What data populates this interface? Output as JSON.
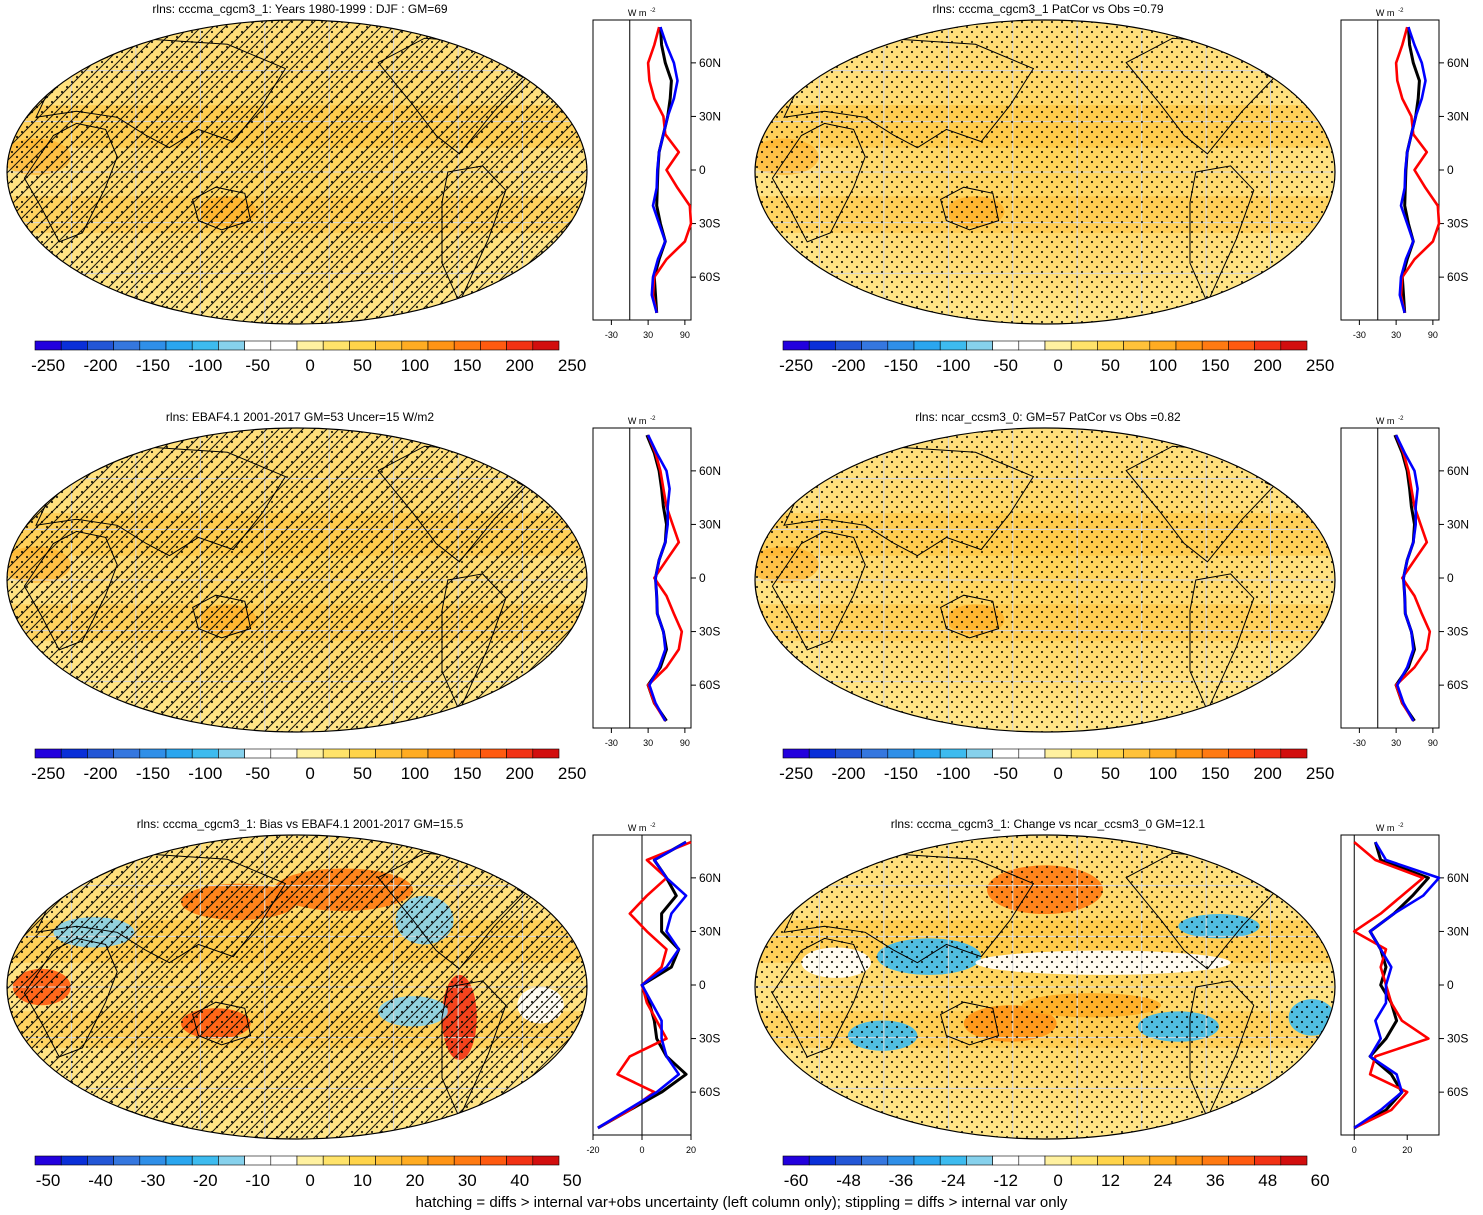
{
  "caption": "hatching = diffs > internal var+obs uncertainty (left column only); stippling = diffs > internal var only",
  "colors": {
    "palette": [
      "#2200dd",
      "#0a2fd8",
      "#2356d6",
      "#3577df",
      "#2f8fe8",
      "#2aa6ef",
      "#3dbbef",
      "#86d1ec",
      "#ffffff",
      "#ffffff",
      "#fff1a0",
      "#ffe36a",
      "#ffd44a",
      "#ffc23a",
      "#ffac22",
      "#ff9415",
      "#ff7a12",
      "#ff5a10",
      "#f23214",
      "#d20e0e"
    ],
    "map_base": "#ffd86a",
    "land_line": "#000000",
    "profile_model": "#000000",
    "profile_obs": "#ff0000",
    "profile_other": "#0000ff"
  },
  "chart_data": [
    {
      "type": "heatmap",
      "title": "rlns: cccma_cgcm3_1: Years 1980-1999 : DJF : GM=69",
      "colorbar_labels": [
        "-250",
        "-200",
        "-150",
        "-100",
        "-50",
        "0",
        "50",
        "100",
        "150",
        "200",
        "250"
      ],
      "value_range": [
        -275,
        275
      ],
      "hatched": true,
      "stippled": true,
      "profile": {
        "unit_label": "W m",
        "unit_exponent": "-2",
        "x_ticks": [
          "-30",
          "30",
          "90"
        ],
        "x_range": [
          -60,
          100
        ],
        "y_labels": [
          "60N",
          "30N",
          "0",
          "30S",
          "60S"
        ],
        "y_values": [
          60,
          30,
          0,
          -30,
          -60
        ],
        "series": [
          {
            "name": "model",
            "color": "#000000",
            "lat": [
              80,
              70,
              60,
              50,
              40,
              30,
              20,
              10,
              0,
              -10,
              -20,
              -30,
              -40,
              -50,
              -60,
              -70,
              -80
            ],
            "values": [
              50,
              52,
              58,
              68,
              66,
              62,
              55,
              48,
              46,
              45,
              44,
              50,
              58,
              48,
              40,
              42,
              44
            ]
          },
          {
            "name": "obs",
            "color": "#ff0000",
            "lat": [
              80,
              70,
              60,
              50,
              40,
              30,
              20,
              10,
              0,
              -10,
              -20,
              -30,
              -40,
              -50,
              -60,
              -70,
              -80
            ],
            "values": [
              48,
              40,
              30,
              32,
              40,
              55,
              58,
              80,
              60,
              78,
              98,
              100,
              90,
              60,
              40,
              38,
              44
            ]
          },
          {
            "name": "other",
            "color": "#0000ff",
            "lat": [
              80,
              70,
              60,
              50,
              40,
              30,
              20,
              10,
              0,
              -10,
              -20,
              -30,
              -40,
              -50,
              -60,
              -70,
              -80
            ],
            "values": [
              50,
              60,
              72,
              78,
              72,
              62,
              55,
              48,
              45,
              44,
              38,
              48,
              58,
              46,
              38,
              36,
              44
            ]
          }
        ]
      }
    },
    {
      "type": "heatmap",
      "title": "rlns: cccma_cgcm3_1 PatCor vs Obs =0.79",
      "colorbar_labels": [
        "-250",
        "-200",
        "-150",
        "-100",
        "-50",
        "0",
        "50",
        "100",
        "150",
        "200",
        "250"
      ],
      "value_range": [
        -275,
        275
      ],
      "hatched": false,
      "stippled": true,
      "profile": {
        "unit_label": "W m",
        "unit_exponent": "-2",
        "x_ticks": [
          "-30",
          "30",
          "90"
        ],
        "x_range": [
          -60,
          100
        ],
        "y_labels": [
          "60N",
          "30N",
          "0",
          "30S",
          "60S"
        ],
        "y_values": [
          60,
          30,
          0,
          -30,
          -60
        ],
        "series": [
          {
            "name": "model",
            "color": "#000000",
            "lat": [
              80,
              70,
              60,
              50,
              40,
              30,
              20,
              10,
              0,
              -10,
              -20,
              -30,
              -40,
              -50,
              -60,
              -70,
              -80
            ],
            "values": [
              50,
              52,
              58,
              68,
              66,
              62,
              55,
              48,
              46,
              45,
              44,
              50,
              58,
              48,
              40,
              42,
              44
            ]
          },
          {
            "name": "obs",
            "color": "#ff0000",
            "lat": [
              80,
              70,
              60,
              50,
              40,
              30,
              20,
              10,
              0,
              -10,
              -20,
              -30,
              -40,
              -50,
              -60,
              -70,
              -80
            ],
            "values": [
              48,
              40,
              30,
              32,
              40,
              55,
              58,
              80,
              60,
              78,
              98,
              100,
              90,
              60,
              40,
              38,
              44
            ]
          },
          {
            "name": "other",
            "color": "#0000ff",
            "lat": [
              80,
              70,
              60,
              50,
              40,
              30,
              20,
              10,
              0,
              -10,
              -20,
              -30,
              -40,
              -50,
              -60,
              -70,
              -80
            ],
            "values": [
              50,
              60,
              72,
              78,
              72,
              62,
              55,
              48,
              45,
              44,
              38,
              48,
              58,
              46,
              38,
              36,
              44
            ]
          }
        ]
      }
    },
    {
      "type": "heatmap",
      "title": "rlns: EBAF4.1 2001-2017 GM=53 Uncer=15 W/m2",
      "colorbar_labels": [
        "-250",
        "-200",
        "-150",
        "-100",
        "-50",
        "0",
        "50",
        "100",
        "150",
        "200",
        "250"
      ],
      "value_range": [
        -275,
        275
      ],
      "hatched": true,
      "stippled": true,
      "profile": {
        "unit_label": "W m",
        "unit_exponent": "-2",
        "x_ticks": [
          "-30",
          "30",
          "90"
        ],
        "x_range": [
          -60,
          100
        ],
        "y_labels": [
          "60N",
          "30N",
          "0",
          "30S",
          "60S"
        ],
        "y_values": [
          60,
          30,
          0,
          -30,
          -60
        ],
        "series": [
          {
            "name": "model",
            "color": "#000000",
            "lat": [
              80,
              70,
              60,
              50,
              40,
              30,
              20,
              10,
              0,
              -10,
              -20,
              -30,
              -40,
              -50,
              -60,
              -70,
              -80
            ],
            "values": [
              28,
              40,
              48,
              52,
              55,
              60,
              58,
              48,
              42,
              44,
              45,
              55,
              60,
              50,
              30,
              40,
              60
            ]
          },
          {
            "name": "obs",
            "color": "#ff0000",
            "lat": [
              80,
              70,
              60,
              50,
              40,
              30,
              20,
              10,
              0,
              -10,
              -20,
              -30,
              -40,
              -50,
              -60,
              -70,
              -80
            ],
            "values": [
              30,
              42,
              50,
              55,
              60,
              70,
              80,
              60,
              40,
              60,
              72,
              85,
              80,
              60,
              30,
              40,
              58
            ]
          },
          {
            "name": "other",
            "color": "#0000ff",
            "lat": [
              80,
              70,
              60,
              50,
              40,
              30,
              20,
              10,
              0,
              -10,
              -20,
              -30,
              -40,
              -50,
              -60,
              -70,
              -80
            ],
            "values": [
              30,
              44,
              60,
              65,
              62,
              62,
              58,
              48,
              42,
              44,
              45,
              55,
              58,
              48,
              32,
              42,
              58
            ]
          }
        ]
      }
    },
    {
      "type": "heatmap",
      "title": "rlns: ncar_ccsm3_0: GM=57 PatCor vs Obs =0.82",
      "colorbar_labels": [
        "-250",
        "-200",
        "-150",
        "-100",
        "-50",
        "0",
        "50",
        "100",
        "150",
        "200",
        "250"
      ],
      "value_range": [
        -275,
        275
      ],
      "hatched": false,
      "stippled": true,
      "profile": {
        "unit_label": "W m",
        "unit_exponent": "-2",
        "x_ticks": [
          "-30",
          "30",
          "90"
        ],
        "x_range": [
          -60,
          100
        ],
        "y_labels": [
          "60N",
          "30N",
          "0",
          "30S",
          "60S"
        ],
        "y_values": [
          60,
          30,
          0,
          -30,
          -60
        ],
        "series": [
          {
            "name": "model",
            "color": "#000000",
            "lat": [
              80,
              70,
              60,
              50,
              40,
              30,
              20,
              10,
              0,
              -10,
              -20,
              -30,
              -40,
              -50,
              -60,
              -70,
              -80
            ],
            "values": [
              28,
              40,
              48,
              52,
              55,
              60,
              58,
              48,
              42,
              44,
              45,
              55,
              60,
              50,
              30,
              40,
              60
            ]
          },
          {
            "name": "obs",
            "color": "#ff0000",
            "lat": [
              80,
              70,
              60,
              50,
              40,
              30,
              20,
              10,
              0,
              -10,
              -20,
              -30,
              -40,
              -50,
              -60,
              -70,
              -80
            ],
            "values": [
              30,
              42,
              50,
              55,
              60,
              70,
              80,
              60,
              40,
              60,
              72,
              85,
              80,
              60,
              30,
              40,
              58
            ]
          },
          {
            "name": "other",
            "color": "#0000ff",
            "lat": [
              80,
              70,
              60,
              50,
              40,
              30,
              20,
              10,
              0,
              -10,
              -20,
              -30,
              -40,
              -50,
              -60,
              -70,
              -80
            ],
            "values": [
              30,
              44,
              60,
              65,
              62,
              62,
              58,
              48,
              42,
              44,
              45,
              55,
              58,
              48,
              32,
              42,
              58
            ]
          }
        ]
      }
    },
    {
      "type": "heatmap",
      "title": "rlns: cccma_cgcm3_1: Bias vs EBAF4.1 2001-2017 GM=15.5",
      "colorbar_labels": [
        "-50",
        "-40",
        "-30",
        "-20",
        "-10",
        "0",
        "10",
        "20",
        "30",
        "40",
        "50"
      ],
      "value_range": [
        -55,
        55
      ],
      "hatched": true,
      "stippled": true,
      "profile": {
        "unit_label": "W m",
        "unit_exponent": "-2",
        "x_ticks": [
          "-20",
          "0",
          "20"
        ],
        "x_range": [
          -20,
          20
        ],
        "y_labels": [
          "60N",
          "30N",
          "0",
          "30S",
          "60S"
        ],
        "y_values": [
          60,
          30,
          0,
          -30,
          -60
        ],
        "series": [
          {
            "name": "model",
            "color": "#000000",
            "lat": [
              80,
              70,
              60,
              50,
              40,
              30,
              20,
              10,
              0,
              -10,
              -20,
              -30,
              -40,
              -50,
              -60,
              -70,
              -80
            ],
            "values": [
              18,
              5,
              10,
              14,
              8,
              8,
              15,
              12,
              0,
              3,
              5,
              6,
              10,
              18,
              8,
              -5,
              -18
            ]
          },
          {
            "name": "obs",
            "color": "#ff0000",
            "lat": [
              80,
              70,
              60,
              50,
              40,
              30,
              20,
              10,
              0,
              -10,
              -20,
              -30,
              -40,
              -50,
              -60,
              -70,
              -80
            ],
            "values": [
              20,
              2,
              10,
              2,
              -5,
              2,
              10,
              8,
              0,
              2,
              6,
              10,
              -5,
              -10,
              5,
              -5,
              -18
            ]
          },
          {
            "name": "other",
            "color": "#0000ff",
            "lat": [
              80,
              70,
              60,
              50,
              40,
              30,
              20,
              10,
              0,
              -10,
              -20,
              -30,
              -40,
              -50,
              -60,
              -70,
              -80
            ],
            "values": [
              18,
              5,
              10,
              18,
              12,
              10,
              15,
              10,
              0,
              4,
              8,
              8,
              10,
              15,
              6,
              -6,
              -18
            ]
          }
        ]
      }
    },
    {
      "type": "heatmap",
      "title": "rlns: cccma_cgcm3_1: Change vs ncar_ccsm3_0 GM=12.1",
      "colorbar_labels": [
        "-60",
        "-48",
        "-36",
        "-24",
        "-12",
        "0",
        "12",
        "24",
        "36",
        "48",
        "60"
      ],
      "value_range": [
        -66,
        66
      ],
      "hatched": false,
      "stippled": true,
      "profile": {
        "unit_label": "W m",
        "unit_exponent": "-2",
        "x_ticks": [
          "0",
          "20"
        ],
        "x_range": [
          -5,
          32
        ],
        "y_labels": [
          "60N",
          "30N",
          "0",
          "30S",
          "60S"
        ],
        "y_values": [
          60,
          30,
          0,
          -30,
          -60
        ],
        "series": [
          {
            "name": "model",
            "color": "#000000",
            "lat": [
              80,
              70,
              60,
              50,
              40,
              30,
              20,
              10,
              0,
              -10,
              -20,
              -30,
              -40,
              -50,
              -60,
              -70,
              -80
            ],
            "values": [
              8,
              10,
              28,
              22,
              15,
              6,
              10,
              12,
              10,
              14,
              16,
              12,
              6,
              14,
              18,
              12,
              0
            ]
          },
          {
            "name": "obs",
            "color": "#ff0000",
            "lat": [
              80,
              70,
              60,
              50,
              40,
              30,
              20,
              10,
              0,
              -10,
              -20,
              -30,
              -40,
              -50,
              -60,
              -70,
              -80
            ],
            "values": [
              0,
              8,
              26,
              18,
              10,
              0,
              12,
              10,
              12,
              14,
              18,
              28,
              8,
              6,
              20,
              14,
              0
            ]
          },
          {
            "name": "other",
            "color": "#0000ff",
            "lat": [
              80,
              70,
              60,
              50,
              40,
              30,
              20,
              10,
              0,
              -10,
              -20,
              -30,
              -40,
              -50,
              -60,
              -70,
              -80
            ],
            "values": [
              8,
              12,
              32,
              26,
              15,
              6,
              10,
              14,
              12,
              12,
              8,
              10,
              6,
              16,
              18,
              10,
              0
            ]
          }
        ]
      }
    }
  ]
}
